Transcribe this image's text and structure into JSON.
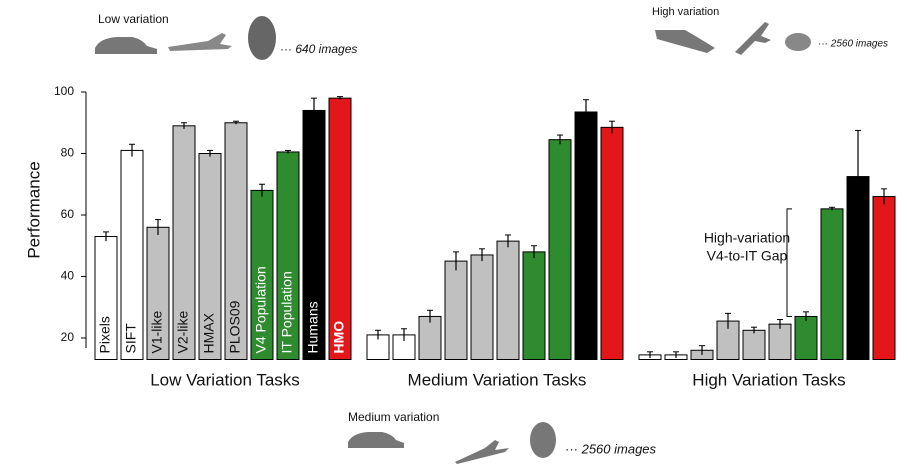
{
  "chart_data": {
    "type": "bar",
    "y_label": "Performance",
    "categories": [
      "Low Variation Tasks",
      "Medium Variation Tasks",
      "High Variation Tasks"
    ],
    "series": [
      {
        "name": "Pixels",
        "color": "#ffffff",
        "values": [
          53,
          21,
          14.5
        ],
        "errors": [
          1.5,
          1.5,
          1
        ]
      },
      {
        "name": "SIFT",
        "color": "#ffffff",
        "values": [
          81,
          21,
          14.5
        ],
        "errors": [
          2,
          2,
          1
        ]
      },
      {
        "name": "V1-like",
        "color": "#c0c0c0",
        "values": [
          56,
          27,
          16
        ],
        "errors": [
          2.5,
          2,
          1.5
        ]
      },
      {
        "name": "V2-like",
        "color": "#c0c0c0",
        "values": [
          89,
          45,
          25.5
        ],
        "errors": [
          1,
          3,
          2.5
        ]
      },
      {
        "name": "HMAX",
        "color": "#c0c0c0",
        "values": [
          80,
          47,
          22.5
        ],
        "errors": [
          1,
          2,
          1
        ]
      },
      {
        "name": "PLOS09",
        "color": "#c0c0c0",
        "values": [
          90,
          51.5,
          24.5
        ],
        "errors": [
          0.5,
          2,
          1.5
        ]
      },
      {
        "name": "V4 Population",
        "color": "#2e8b2e",
        "values": [
          68,
          48,
          27
        ],
        "errors": [
          2,
          2,
          1.5
        ]
      },
      {
        "name": "IT Population",
        "color": "#2e8b2e",
        "values": [
          80.5,
          84.5,
          62
        ],
        "errors": [
          0.5,
          1.5,
          0.5
        ]
      },
      {
        "name": "Humans",
        "color": "#000000",
        "values": [
          94,
          93.5,
          72.5
        ],
        "errors": [
          4,
          4,
          15
        ]
      },
      {
        "name": "HMO",
        "color": "#e3161a",
        "values": [
          98,
          88.5,
          66
        ],
        "errors": [
          0.5,
          2,
          2.5
        ]
      }
    ],
    "ylim": [
      13,
      100
    ],
    "yticks": [
      20,
      40,
      60,
      80,
      100
    ],
    "gap_annotation": [
      "High-variation",
      "V4-to-IT Gap"
    ],
    "image_sets": [
      {
        "title": "Low variation",
        "count": "··· 640 images"
      },
      {
        "title": "High variation",
        "count": "··· 2560 images"
      },
      {
        "title": "Medium variation",
        "count": "··· 2560 images"
      }
    ]
  }
}
